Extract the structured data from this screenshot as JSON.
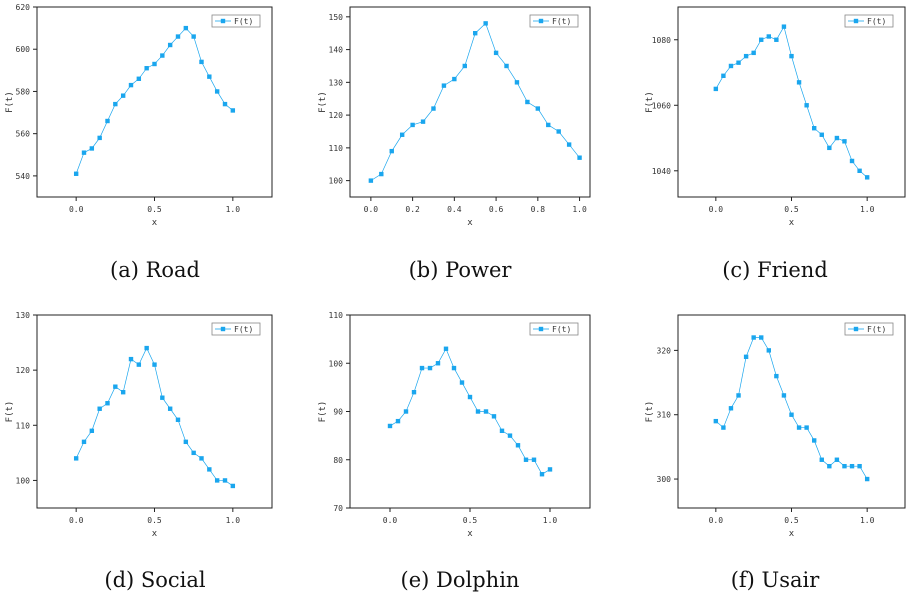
{
  "chart_data": [
    {
      "type": "scatter",
      "caption": "(a) Road",
      "xlabel": "x",
      "ylabel": "F(t)",
      "legend": "F(t)",
      "legend_position": "top-right",
      "xlim": [
        -0.25,
        1.25
      ],
      "ylim": [
        530,
        620
      ],
      "xticks": [
        "0.0",
        "0.5",
        "1.0"
      ],
      "yticks": [
        "540",
        "560",
        "580",
        "600",
        "620"
      ],
      "x": [
        0,
        0.05,
        0.1,
        0.15,
        0.2,
        0.25,
        0.3,
        0.35,
        0.4,
        0.45,
        0.5,
        0.55,
        0.6,
        0.65,
        0.7,
        0.75,
        0.8,
        0.85,
        0.9,
        0.95,
        1.0
      ],
      "y": [
        541,
        551,
        553,
        558,
        566,
        574,
        578,
        583,
        586,
        591,
        593,
        597,
        602,
        606,
        610,
        606,
        594,
        587,
        580,
        574,
        571
      ]
    },
    {
      "type": "scatter",
      "caption": "(b) Power",
      "xlabel": "x",
      "ylabel": "F(t)",
      "legend": "F(t)",
      "legend_position": "top-right",
      "xlim": [
        -0.1,
        1.05
      ],
      "ylim": [
        95,
        153
      ],
      "xticks": [
        "0.0",
        "0.2",
        "0.4",
        "0.6",
        "0.8",
        "1.0"
      ],
      "yticks": [
        "100",
        "110",
        "120",
        "130",
        "140",
        "150"
      ],
      "x": [
        0,
        0.05,
        0.1,
        0.15,
        0.2,
        0.25,
        0.3,
        0.35,
        0.4,
        0.45,
        0.5,
        0.55,
        0.6,
        0.65,
        0.7,
        0.75,
        0.8,
        0.85,
        0.9,
        0.95,
        1.0
      ],
      "y": [
        100,
        102,
        109,
        114,
        117,
        118,
        122,
        129,
        131,
        135,
        145,
        148,
        139,
        135,
        130,
        124,
        122,
        117,
        115,
        111,
        107
      ]
    },
    {
      "type": "scatter",
      "caption": "(c) Friend",
      "xlabel": "x",
      "ylabel": "F(t)",
      "legend": "F(t)",
      "legend_position": "top-right",
      "xlim": [
        -0.25,
        1.25
      ],
      "ylim": [
        1032,
        1090
      ],
      "xticks": [
        "0.0",
        "0.5",
        "1.0"
      ],
      "yticks": [
        "1040",
        "1060",
        "1080"
      ],
      "x": [
        0,
        0.05,
        0.1,
        0.15,
        0.2,
        0.25,
        0.3,
        0.35,
        0.4,
        0.45,
        0.5,
        0.55,
        0.6,
        0.65,
        0.7,
        0.75,
        0.8,
        0.85,
        0.9,
        0.95,
        1.0
      ],
      "y": [
        1065,
        1069,
        1072,
        1073,
        1075,
        1076,
        1080,
        1081,
        1080,
        1084,
        1075,
        1067,
        1060,
        1053,
        1051,
        1047,
        1050,
        1049,
        1043,
        1040,
        1038
      ]
    },
    {
      "type": "scatter",
      "caption": "(d) Social",
      "xlabel": "x",
      "ylabel": "F(t)",
      "legend": "F(t)",
      "legend_position": "top-right",
      "xlim": [
        -0.25,
        1.25
      ],
      "ylim": [
        95,
        130
      ],
      "xticks": [
        "0.0",
        "0.5",
        "1.0"
      ],
      "yticks": [
        "100",
        "110",
        "120",
        "130"
      ],
      "x": [
        0,
        0.05,
        0.1,
        0.15,
        0.2,
        0.25,
        0.3,
        0.35,
        0.4,
        0.45,
        0.5,
        0.55,
        0.6,
        0.65,
        0.7,
        0.75,
        0.8,
        0.85,
        0.9,
        0.95,
        1.0
      ],
      "y": [
        104,
        107,
        109,
        113,
        114,
        117,
        116,
        122,
        121,
        124,
        121,
        115,
        113,
        111,
        107,
        105,
        104,
        102,
        100,
        100,
        99
      ]
    },
    {
      "type": "scatter",
      "caption": "(e) Dolphin",
      "xlabel": "x",
      "ylabel": "F(t)",
      "legend": "F(t)",
      "legend_position": "top-right",
      "xlim": [
        -0.25,
        1.25
      ],
      "ylim": [
        70,
        110
      ],
      "xticks": [
        "0.0",
        "0.5",
        "1.0"
      ],
      "yticks": [
        "70",
        "80",
        "90",
        "100",
        "110"
      ],
      "x": [
        0,
        0.05,
        0.1,
        0.15,
        0.2,
        0.25,
        0.3,
        0.35,
        0.4,
        0.45,
        0.5,
        0.55,
        0.6,
        0.65,
        0.7,
        0.75,
        0.8,
        0.85,
        0.9,
        0.95,
        1.0
      ],
      "y": [
        87,
        88,
        90,
        94,
        99,
        99,
        100,
        103,
        99,
        96,
        93,
        90,
        90,
        89,
        86,
        85,
        83,
        80,
        80,
        77,
        78
      ]
    },
    {
      "type": "scatter",
      "caption": "(f) Usair",
      "xlabel": "x",
      "ylabel": "F(t)",
      "legend": "F(t)",
      "legend_position": "top-right",
      "xlim": [
        -0.25,
        1.25
      ],
      "ylim": [
        295.5,
        325.5
      ],
      "xticks": [
        "0.0",
        "0.5",
        "1.0"
      ],
      "yticks": [
        "300",
        "310",
        "320"
      ],
      "x": [
        0,
        0.05,
        0.1,
        0.15,
        0.2,
        0.25,
        0.3,
        0.35,
        0.4,
        0.45,
        0.5,
        0.55,
        0.6,
        0.65,
        0.7,
        0.75,
        0.8,
        0.85,
        0.9,
        0.95,
        1.0
      ],
      "y": [
        309,
        308,
        311,
        313,
        319,
        322,
        322,
        320,
        316,
        313,
        310,
        308,
        308,
        306,
        303,
        302,
        303,
        302,
        302,
        302,
        300
      ]
    }
  ],
  "colors": {
    "marker": "#1aa6ee",
    "line": "#1aa6ee"
  }
}
